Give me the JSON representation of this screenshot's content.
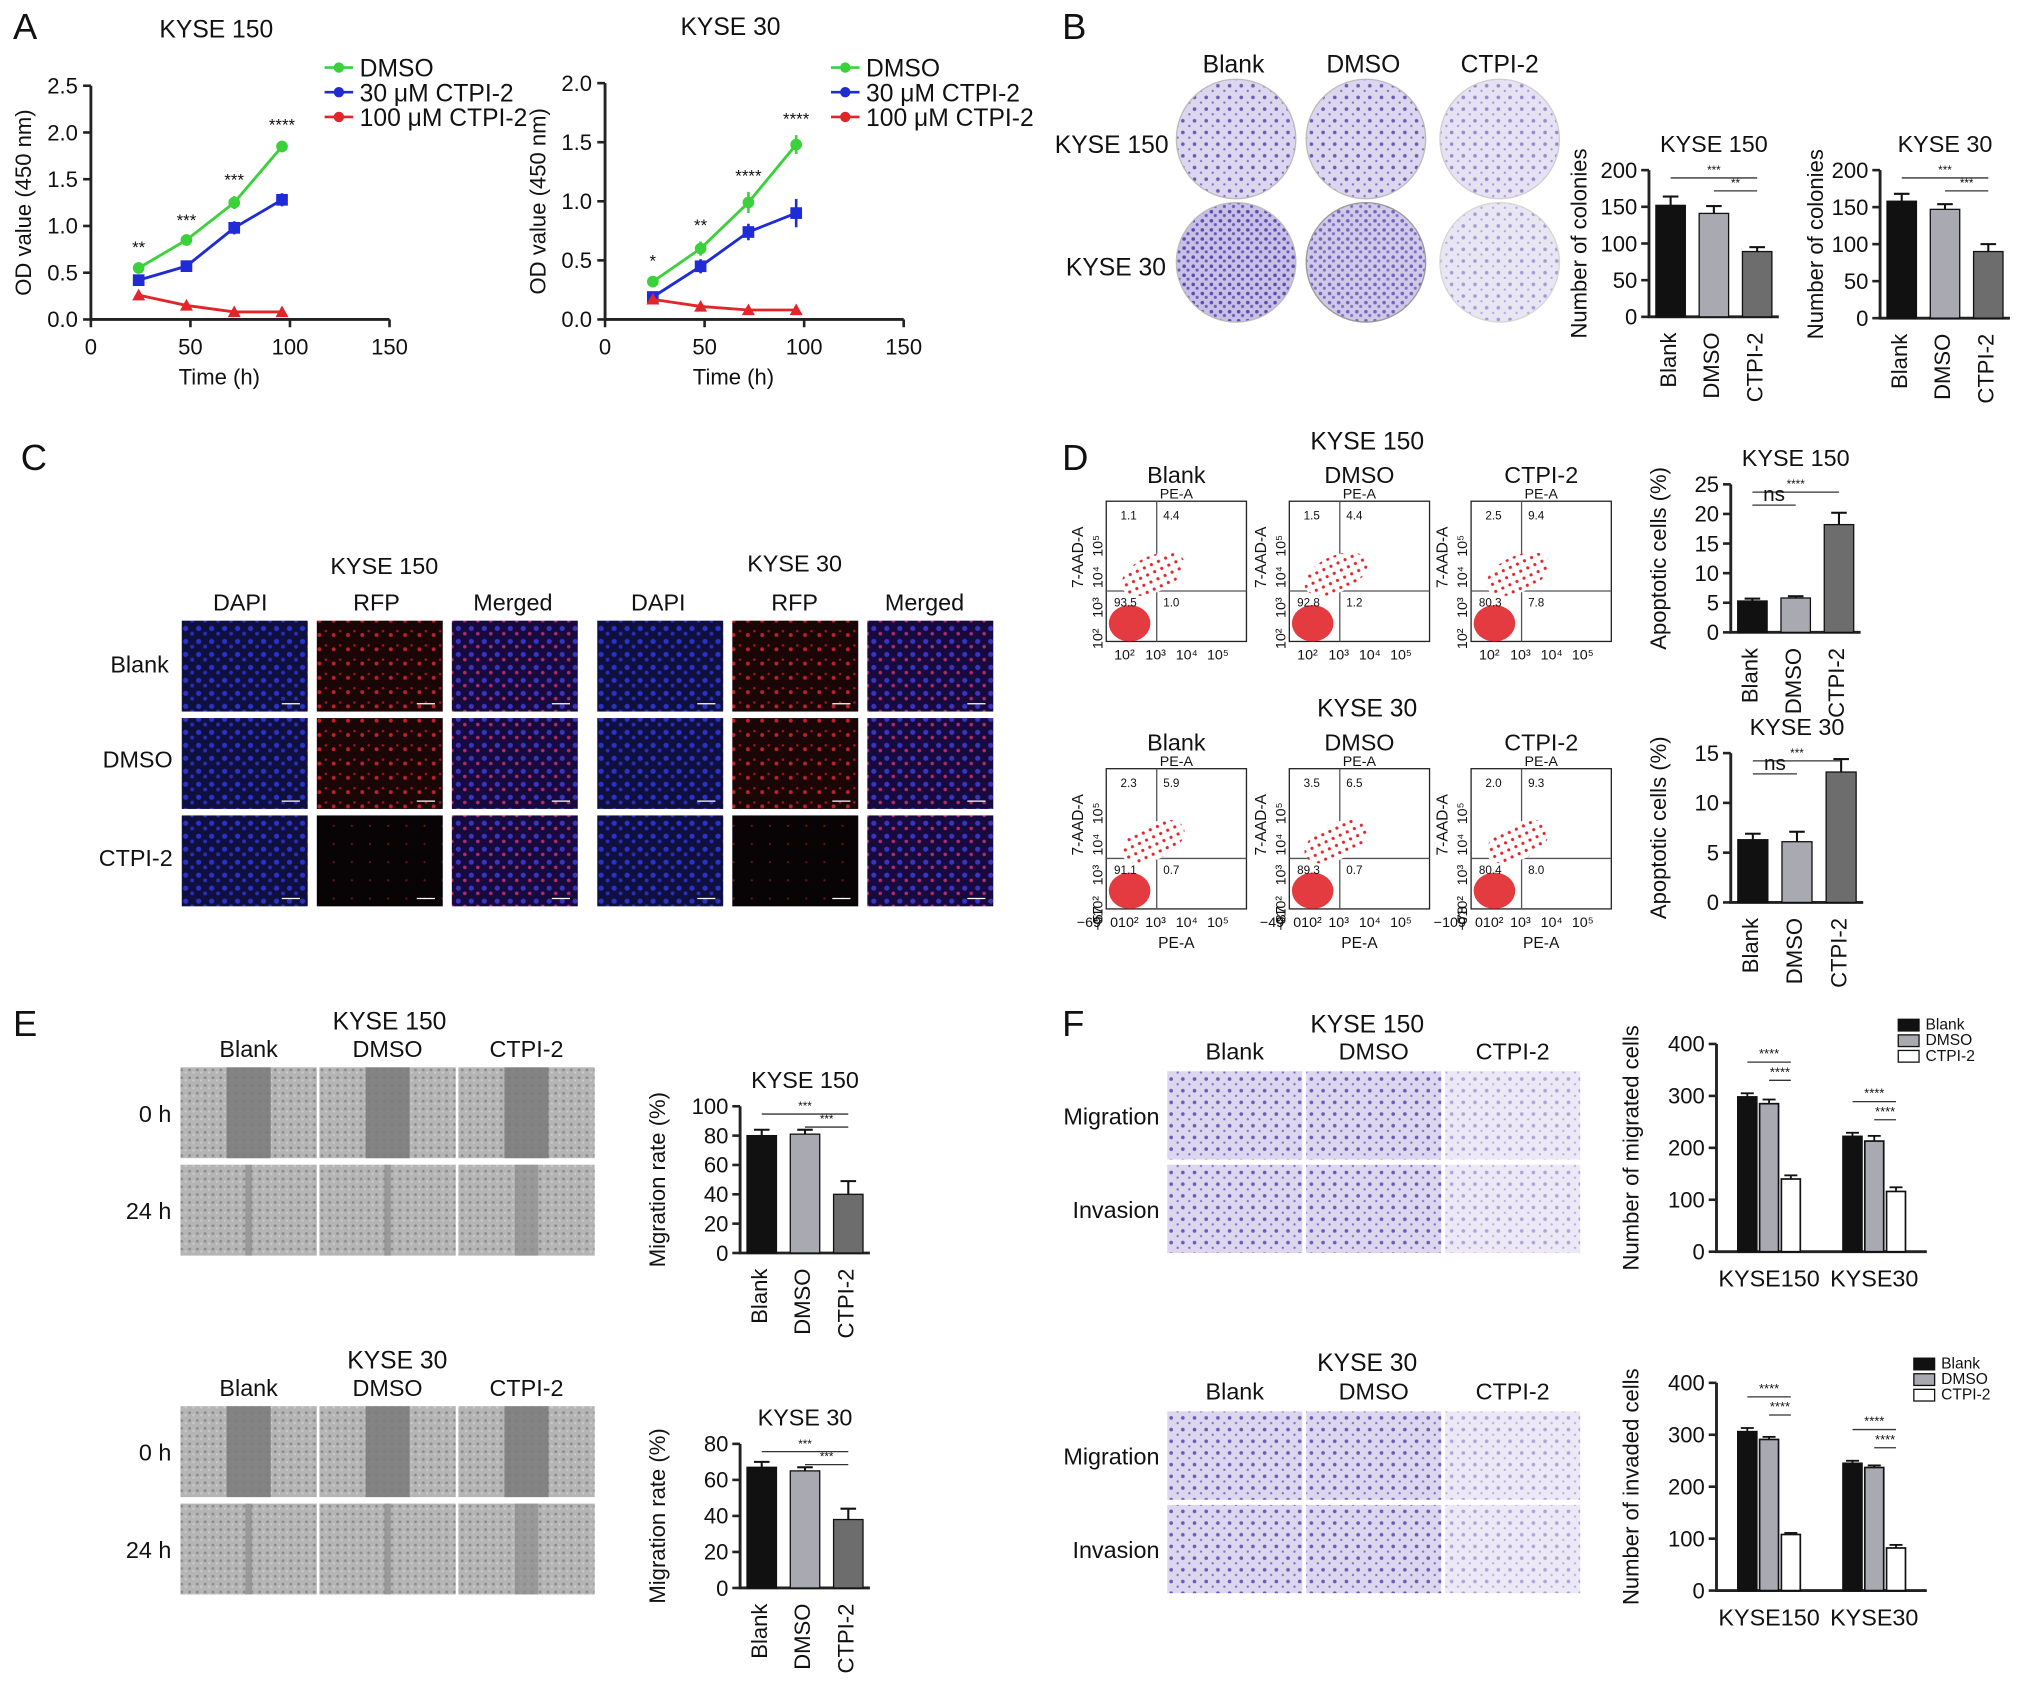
{
  "panels": {
    "A": {
      "label": "A"
    },
    "B": {
      "label": "B"
    },
    "C": {
      "label": "C"
    },
    "D": {
      "label": "D"
    },
    "E": {
      "label": "E"
    },
    "F": {
      "label": "F"
    }
  },
  "colors": {
    "dmso_line": "#3bd13b",
    "ctpi30_line": "#1f2bd6",
    "ctpi100_line": "#e0262a",
    "bar_black": "#111111",
    "bar_gray": "#a9a9b1",
    "bar_dark": "#6d6d6d",
    "bar_white": "#ffffff",
    "crystal_violet": "#6b5bb8",
    "fluor_blue": "#2a33c9",
    "fluor_red": "#c0202b"
  },
  "chart_data": [
    {
      "id": "A1",
      "type": "line",
      "title": "KYSE 150",
      "xlabel": "Time (h)",
      "ylabel": "OD value (450 nm)",
      "xlim": [
        0,
        150
      ],
      "ylim": [
        0,
        2.5
      ],
      "xticks": [
        "0",
        "50",
        "100",
        "150"
      ],
      "yticks": [
        "0.0",
        "0.5",
        "1.0",
        "1.5",
        "2.0",
        "2.5"
      ],
      "x": [
        24,
        48,
        72,
        96
      ],
      "series": [
        {
          "name": "DMSO",
          "values": [
            0.55,
            0.85,
            1.25,
            1.85
          ],
          "err": [
            0.05,
            0.04,
            0.07,
            0.06
          ]
        },
        {
          "name": "30 μM CTPI-2",
          "values": [
            0.42,
            0.57,
            0.98,
            1.28
          ],
          "err": [
            0.05,
            0.04,
            0.07,
            0.07
          ]
        },
        {
          "name": "100 μM CTPI-2",
          "values": [
            0.26,
            0.15,
            0.08,
            0.08
          ],
          "err": [
            0,
            0,
            0,
            0
          ]
        }
      ],
      "annotations": [
        "**",
        "***",
        "***",
        "****"
      ]
    },
    {
      "id": "A2",
      "type": "line",
      "title": "KYSE 30",
      "xlabel": "Time (h)",
      "ylabel": "OD value (450 nm)",
      "xlim": [
        0,
        150
      ],
      "ylim": [
        0,
        2.0
      ],
      "xticks": [
        "0",
        "50",
        "100",
        "150"
      ],
      "yticks": [
        "0.0",
        "0.5",
        "1.0",
        "1.5",
        "2.0"
      ],
      "x": [
        24,
        48,
        72,
        96
      ],
      "series": [
        {
          "name": "DMSO",
          "values": [
            0.32,
            0.6,
            0.99,
            1.48
          ],
          "err": [
            0.04,
            0.06,
            0.09,
            0.08
          ]
        },
        {
          "name": "30 μM CTPI-2",
          "values": [
            0.19,
            0.45,
            0.74,
            0.9
          ],
          "err": [
            0.03,
            0.06,
            0.07,
            0.12
          ]
        },
        {
          "name": "100 μM CTPI-2",
          "values": [
            0.17,
            0.11,
            0.08,
            0.08
          ],
          "err": [
            0,
            0,
            0,
            0
          ]
        }
      ],
      "annotations": [
        "*",
        "**",
        "****",
        "****"
      ]
    },
    {
      "id": "B1",
      "type": "bar",
      "title": "KYSE 150",
      "ylabel": "Number of colonies",
      "categories": [
        "Blank",
        "DMSO",
        "CTPI-2"
      ],
      "values": [
        152,
        141,
        89
      ],
      "err": [
        12,
        10,
        6
      ],
      "ylim": [
        0,
        200
      ],
      "yticks": [
        "0",
        "50",
        "100",
        "150",
        "200"
      ],
      "sig": [
        {
          "a": 0,
          "b": 2,
          "label": "***"
        },
        {
          "a": 1,
          "b": 2,
          "label": "**"
        }
      ]
    },
    {
      "id": "B2",
      "type": "bar",
      "title": "KYSE 30",
      "ylabel": "Number of colonies",
      "categories": [
        "Blank",
        "DMSO",
        "CTPI-2"
      ],
      "values": [
        158,
        147,
        90
      ],
      "err": [
        10,
        7,
        10
      ],
      "ylim": [
        0,
        200
      ],
      "yticks": [
        "0",
        "50",
        "100",
        "150",
        "200"
      ],
      "sig": [
        {
          "a": 0,
          "b": 2,
          "label": "***"
        },
        {
          "a": 1,
          "b": 2,
          "label": "***"
        }
      ]
    },
    {
      "id": "D1",
      "type": "bar",
      "title": "KYSE 150",
      "ylabel": "Apoptotic cells (%)",
      "categories": [
        "Blank",
        "DMSO",
        "CTPI-2"
      ],
      "values": [
        5.3,
        5.8,
        18.2
      ],
      "err": [
        0.4,
        0.3,
        2.0
      ],
      "ylim": [
        0,
        25
      ],
      "yticks": [
        "0",
        "5",
        "10",
        "15",
        "20",
        "25"
      ],
      "sig": [
        {
          "a": 0,
          "b": 2,
          "label": "****"
        },
        {
          "a": 0,
          "b": 1,
          "label": "ns"
        }
      ]
    },
    {
      "id": "D2",
      "type": "bar",
      "title": "KYSE 30",
      "ylabel": "Apoptotic cells (%)",
      "categories": [
        "Blank",
        "DMSO",
        "CTPI-2"
      ],
      "values": [
        6.3,
        6.1,
        13.1
      ],
      "err": [
        0.6,
        1.0,
        1.3
      ],
      "ylim": [
        0,
        15
      ],
      "yticks": [
        "0",
        "5",
        "10",
        "15"
      ],
      "sig": [
        {
          "a": 0,
          "b": 2,
          "label": "***"
        },
        {
          "a": 0,
          "b": 1,
          "label": "ns"
        }
      ]
    },
    {
      "id": "E1",
      "type": "bar",
      "title": "KYSE 150",
      "ylabel": "Migration rate (%)",
      "categories": [
        "Blank",
        "DMSO",
        "CTPI-2"
      ],
      "values": [
        80,
        81,
        40
      ],
      "err": [
        4,
        3,
        9
      ],
      "ylim": [
        0,
        100
      ],
      "yticks": [
        "0",
        "20",
        "40",
        "60",
        "80",
        "100"
      ],
      "sig": [
        {
          "a": 0,
          "b": 2,
          "label": "***"
        },
        {
          "a": 1,
          "b": 2,
          "label": "***"
        }
      ]
    },
    {
      "id": "E2",
      "type": "bar",
      "title": "KYSE 30",
      "ylabel": "Migration rate (%)",
      "categories": [
        "Blank",
        "DMSO",
        "CTPI-2"
      ],
      "values": [
        67,
        65,
        38
      ],
      "err": [
        3,
        2,
        6
      ],
      "ylim": [
        0,
        80
      ],
      "yticks": [
        "0",
        "20",
        "40",
        "60",
        "80"
      ],
      "sig": [
        {
          "a": 0,
          "b": 2,
          "label": "***"
        },
        {
          "a": 1,
          "b": 2,
          "label": "***"
        }
      ]
    },
    {
      "id": "F1",
      "type": "bar",
      "ylabel": "Number of migrated cells",
      "categories": [
        "KYSE150",
        "KYSE30"
      ],
      "series": [
        {
          "name": "Blank",
          "values": [
            298,
            222
          ],
          "err": [
            7,
            7
          ]
        },
        {
          "name": "DMSO",
          "values": [
            285,
            213
          ],
          "err": [
            8,
            10
          ]
        },
        {
          "name": "CTPI-2",
          "values": [
            140,
            116
          ],
          "err": [
            7,
            8
          ]
        }
      ],
      "ylim": [
        0,
        400
      ],
      "yticks": [
        "0",
        "100",
        "200",
        "300",
        "400"
      ],
      "sig_labels": [
        "****",
        "****",
        "****",
        "****"
      ]
    },
    {
      "id": "F2",
      "type": "bar",
      "ylabel": "Number of invaded cells",
      "categories": [
        "KYSE150",
        "KYSE30"
      ],
      "series": [
        {
          "name": "Blank",
          "values": [
            306,
            245
          ],
          "err": [
            7,
            5
          ]
        },
        {
          "name": "DMSO",
          "values": [
            291,
            237
          ],
          "err": [
            5,
            4
          ]
        },
        {
          "name": "CTPI-2",
          "values": [
            108,
            82
          ],
          "err": [
            3,
            6
          ]
        }
      ],
      "ylim": [
        0,
        400
      ],
      "yticks": [
        "0",
        "100",
        "200",
        "300",
        "400"
      ],
      "sig_labels": [
        "****",
        "****",
        "****",
        "****"
      ]
    }
  ],
  "panelB": {
    "col_labels": [
      "Blank",
      "DMSO",
      "CTPI-2"
    ],
    "row_labels": [
      "KYSE 150",
      "KYSE 30"
    ]
  },
  "panelC": {
    "group1": "KYSE 150",
    "group2": "KYSE 30",
    "col_labels": [
      "DAPI",
      "RFP",
      "Merged",
      "DAPI",
      "RFP",
      "Merged"
    ],
    "row_labels": [
      "Blank",
      "DMSO",
      "CTPI-2"
    ]
  },
  "panelD": {
    "rows": [
      {
        "title": "KYSE 150",
        "cols": [
          "Blank",
          "DMSO",
          "CTPI-2"
        ],
        "q_top": [
          [
            "1.1",
            "4.4"
          ],
          [
            "1.5",
            "4.4"
          ],
          [
            "2.5",
            "9.4"
          ]
        ],
        "q_bot": [
          [
            "93.5",
            "1.0"
          ],
          [
            "92.8",
            "1.2"
          ],
          [
            "80.3",
            "7.8"
          ]
        ],
        "xaxis_top": "PE-A",
        "yaxis": "7-AAD-A",
        "xticks": [
          "10²",
          "10³",
          "10⁴",
          "10⁵"
        ],
        "yticks": [
          "10²",
          "10³",
          "10⁴",
          "10⁵"
        ]
      },
      {
        "title": "KYSE 30",
        "cols": [
          "Blank",
          "DMSO",
          "CTPI-2"
        ],
        "q_top": [
          [
            "2.3",
            "5.9"
          ],
          [
            "3.5",
            "6.5"
          ],
          [
            "2.0",
            "9.3"
          ]
        ],
        "q_bot": [
          [
            "91.1",
            "0.7"
          ],
          [
            "89.3",
            "0.7"
          ],
          [
            "80.4",
            "8.0"
          ]
        ],
        "xaxis_top": "PE-A",
        "xaxis_bottom": "PE-A",
        "yaxis": "7-AAD-A",
        "xmins": [
          "−69",
          "−49",
          "−109"
        ],
        "ymins": [
          "−57",
          "−87",
          "−78"
        ],
        "xticks": [
          "010²",
          "10³",
          "10⁴",
          "10⁵"
        ],
        "yticks": [
          "010²",
          "10³",
          "10⁴",
          "10⁵"
        ]
      }
    ]
  },
  "panelE": {
    "rows": [
      {
        "title": "KYSE 150",
        "cols": [
          "Blank",
          "DMSO",
          "CTPI-2"
        ],
        "times": [
          "0 h",
          "24 h"
        ]
      },
      {
        "title": "KYSE 30",
        "cols": [
          "Blank",
          "DMSO",
          "CTPI-2"
        ],
        "times": [
          "0 h",
          "24 h"
        ]
      }
    ]
  },
  "panelF": {
    "rows": [
      {
        "title": "KYSE 150",
        "cols": [
          "Blank",
          "DMSO",
          "CTPI-2"
        ],
        "assays": [
          "Migration",
          "Invasion"
        ]
      },
      {
        "title": "KYSE 30",
        "cols": [
          "Blank",
          "DMSO",
          "CTPI-2"
        ],
        "assays": [
          "Migration",
          "Invasion"
        ]
      }
    ]
  }
}
